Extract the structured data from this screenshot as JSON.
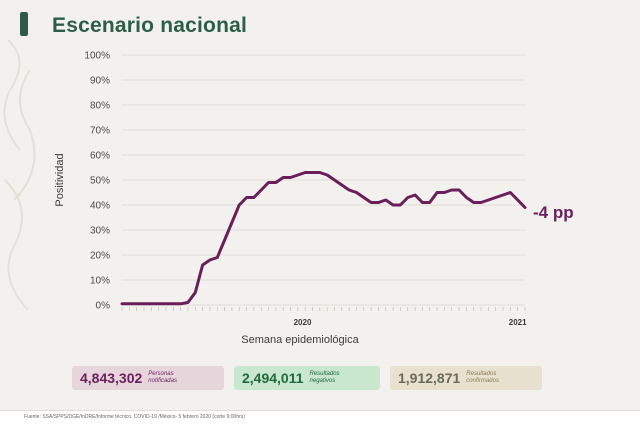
{
  "title": "Escenario nacional",
  "colors": {
    "accent_green": "#2c5e48",
    "line": "#6b1f5a",
    "background": "#f3f1ed"
  },
  "chart_data": {
    "type": "line",
    "title": "Escenario nacional",
    "xlabel": "Semana epidemiológica",
    "ylabel": "Positividad",
    "ylim": [
      0,
      100
    ],
    "yticks": [
      "0%",
      "10%",
      "20%",
      "30%",
      "40%",
      "50%",
      "60%",
      "70%",
      "80%",
      "90%",
      "100%"
    ],
    "year_labels": [
      "2020",
      "2021"
    ],
    "grid": true,
    "weeks_2020": 53,
    "weeks_2021": 4,
    "series": [
      {
        "values": [
          0.5,
          0.5,
          0.5,
          0.5,
          0.5,
          0.5,
          0.5,
          0.5,
          0.5,
          1,
          5,
          16,
          18,
          19,
          26,
          33,
          40,
          43,
          43,
          46,
          49,
          49,
          51,
          51,
          52,
          53,
          53,
          53,
          52,
          50,
          48,
          46,
          45,
          43,
          41,
          41,
          42,
          40,
          40,
          43,
          44,
          41,
          41,
          45,
          45,
          46,
          46,
          43,
          41,
          41,
          42,
          43,
          44,
          45,
          42,
          39
        ]
      }
    ],
    "annotation": "-4 pp"
  },
  "stats": {
    "personas": {
      "value": "4,843,302",
      "label_line1": "Personas",
      "label_line2": "notificadas"
    },
    "negativos": {
      "value": "2,494,011",
      "label_line1": "Resultados",
      "label_line2": "negativos"
    },
    "confirmados": {
      "value": "1,912,871",
      "label_line1": "Resultados",
      "label_line2": "confirmados"
    }
  },
  "footer": {
    "source": "Fuente: SSA/SPPS/DGE/InDRE/Informe técnico. COVID-19 /México- 5 febrero 2020 (corte 9:00hrs)"
  }
}
